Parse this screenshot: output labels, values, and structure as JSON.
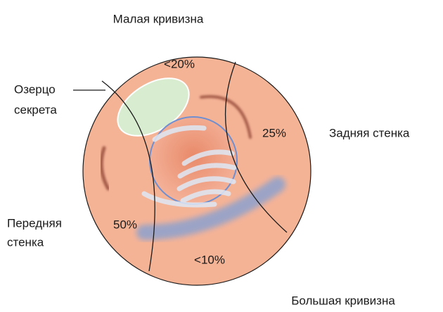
{
  "labels": {
    "lesser_curvature": "Малая кривизна",
    "greater_curvature": "Большая кривизна",
    "posterior_wall": "Задняя стенка",
    "anterior_wall": [
      "Передняя",
      "стенка"
    ],
    "secretion_pool": [
      "Озерцо",
      "секрета"
    ]
  },
  "sectors": {
    "top": "<20%",
    "right": "25%",
    "left": "50%",
    "bottom": "<10%"
  }
}
